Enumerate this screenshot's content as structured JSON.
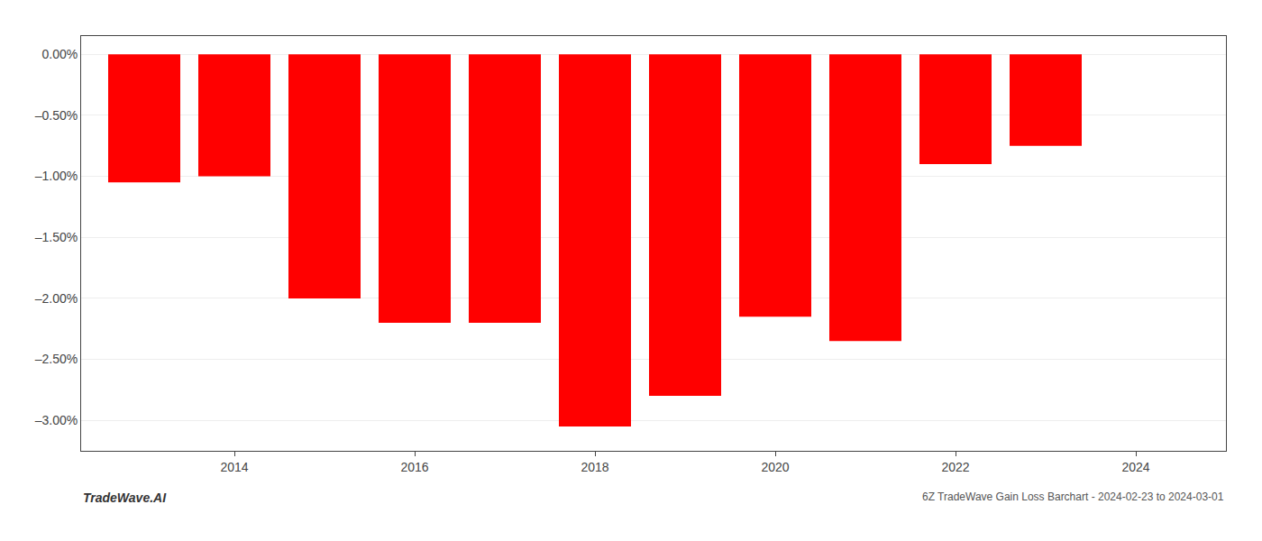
{
  "chart_data": {
    "type": "bar",
    "x": [
      2013,
      2014,
      2015,
      2016,
      2017,
      2018,
      2019,
      2020,
      2021,
      2022,
      2023
    ],
    "values": [
      -1.05,
      -1.0,
      -2.0,
      -2.2,
      -2.2,
      -3.05,
      -2.8,
      -2.15,
      -2.35,
      -0.9,
      -0.75
    ],
    "color": "#ff0000",
    "xlim": [
      2012.3,
      2025.0
    ],
    "xticks": [
      2014,
      2016,
      2018,
      2020,
      2022,
      2024
    ],
    "ylim": [
      -3.25,
      0.15
    ],
    "yticks": [
      {
        "value": 0.0,
        "label": "0.00%"
      },
      {
        "value": -0.5,
        "label": "–0.50%"
      },
      {
        "value": -1.0,
        "label": "–1.00%"
      },
      {
        "value": -1.5,
        "label": "–1.50%"
      },
      {
        "value": -2.0,
        "label": "–2.00%"
      },
      {
        "value": -2.5,
        "label": "–2.50%"
      },
      {
        "value": -3.0,
        "label": "–3.00%"
      }
    ],
    "grid": true,
    "annotations": [
      "TradeWave.AI",
      "6Z TradeWave Gain Loss Barchart - 2024-02-23 to 2024-03-01"
    ]
  }
}
